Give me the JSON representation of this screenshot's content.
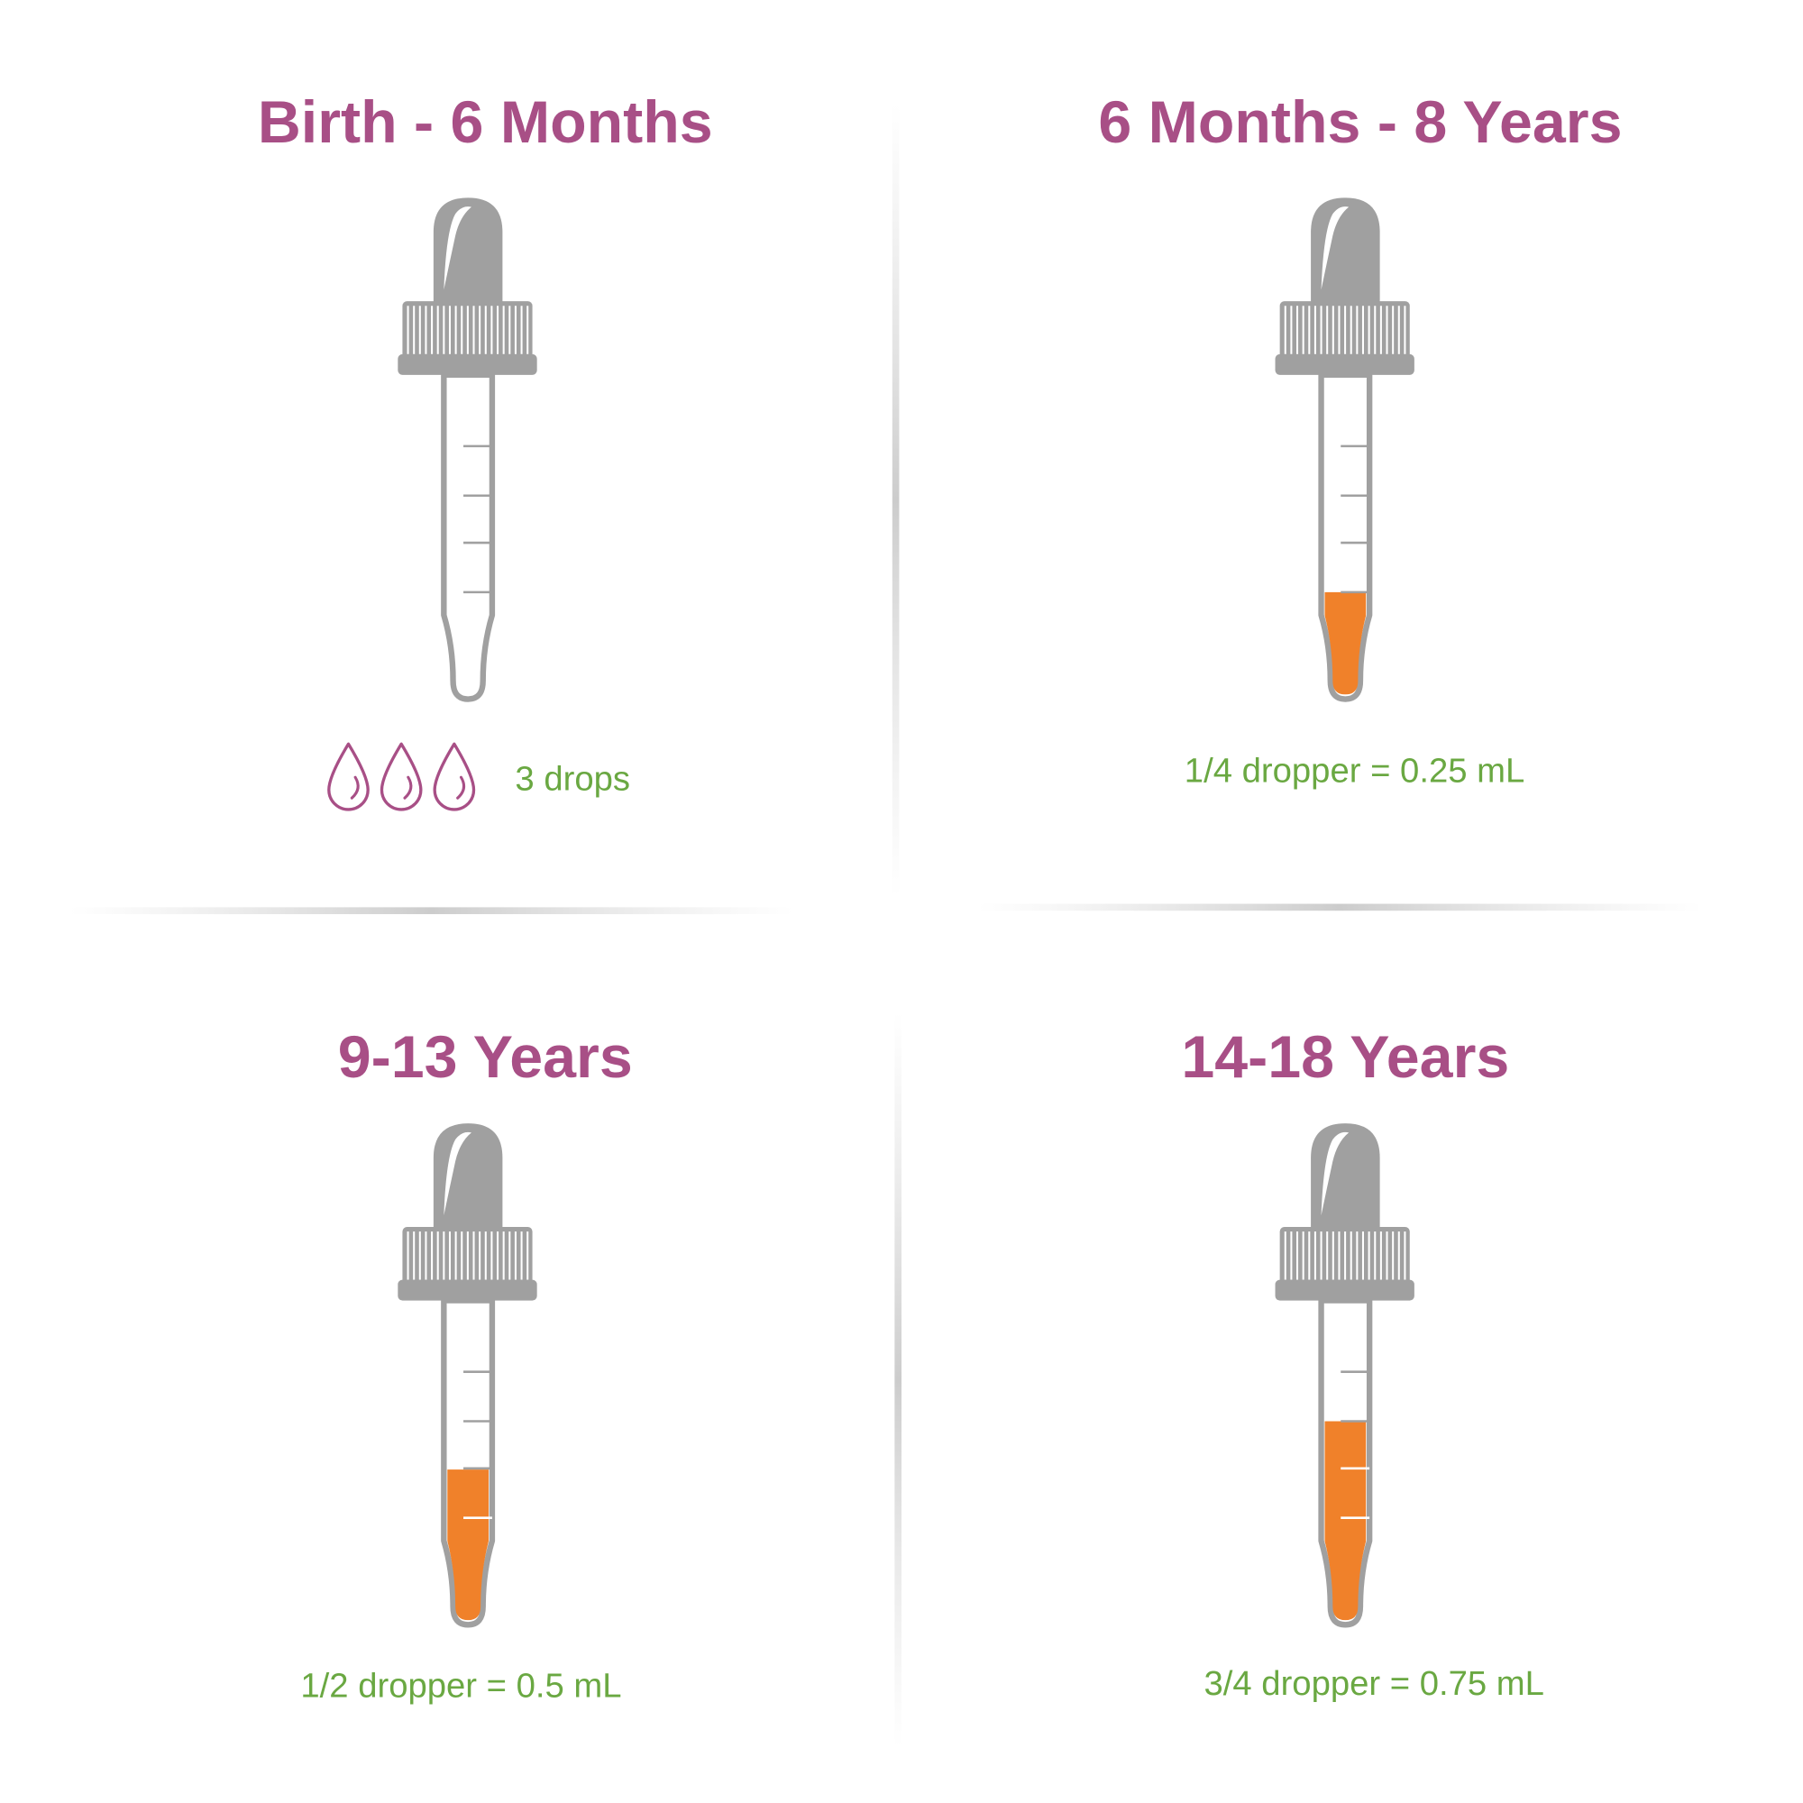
{
  "colors": {
    "title": "#a84f86",
    "label": "#6aa842",
    "dropper": "#a0a0a0",
    "liquid": "#f0812a",
    "drop_icon": "#a84f86"
  },
  "panels": [
    {
      "title": "Birth - 6 Months",
      "label": "3 drops",
      "fill_fraction": 0,
      "icon": "water-drop-icon",
      "drop_count": 3
    },
    {
      "title": "6 Months - 8 Years",
      "label": "1/4 dropper = 0.25 mL",
      "fill_fraction": 0.25
    },
    {
      "title": "9-13 Years",
      "label": "1/2 dropper = 0.5 mL",
      "fill_fraction": 0.5
    },
    {
      "title": "14-18 Years",
      "label": "3/4 dropper = 0.75 mL",
      "fill_fraction": 0.75
    }
  ]
}
